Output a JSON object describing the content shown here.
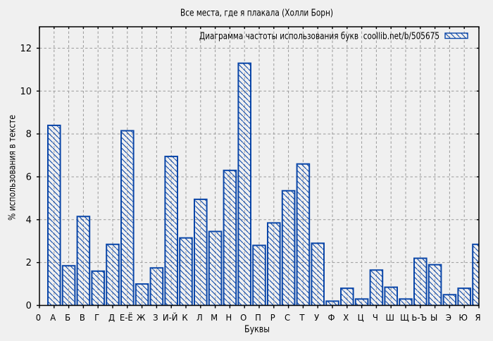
{
  "chart_data": {
    "type": "bar",
    "title": "Все места, где я плакала (Холли Борн)",
    "legend_label": "Диаграмма частоты использования букв  coollib.net/b/505675",
    "xlabel": "Буквы",
    "ylabel": "% использования в тексте",
    "ylim": [
      0,
      13
    ],
    "yticks": [
      0,
      2,
      4,
      6,
      8,
      10,
      12
    ],
    "grid": true,
    "legend_position": "top-right-inside",
    "bar_style": "diagonal-hatch",
    "colors": {
      "bar": "#0a46a8",
      "background": "#f0f0f0",
      "grid": "#9a9a9a",
      "axis": "#000000"
    },
    "categories": [
      "0",
      "А",
      "Б",
      "В",
      "Г",
      "Д",
      "Е-Ё",
      "Ж",
      "З",
      "И-Й",
      "К",
      "Л",
      "М",
      "Н",
      "О",
      "П",
      "Р",
      "С",
      "Т",
      "У",
      "Ф",
      "Х",
      "Ц",
      "Ч",
      "Ш",
      "Щ",
      "Ь-Ъ",
      "Ы",
      "Э",
      "Ю",
      "Я"
    ],
    "values": [
      null,
      8.4,
      1.85,
      4.15,
      1.6,
      2.85,
      8.15,
      1.0,
      1.75,
      6.95,
      3.15,
      4.95,
      3.45,
      6.3,
      11.3,
      2.8,
      3.85,
      5.35,
      6.6,
      2.9,
      0.2,
      0.8,
      0.3,
      1.65,
      0.85,
      0.3,
      2.2,
      1.9,
      0.5,
      0.8,
      2.85
    ]
  }
}
